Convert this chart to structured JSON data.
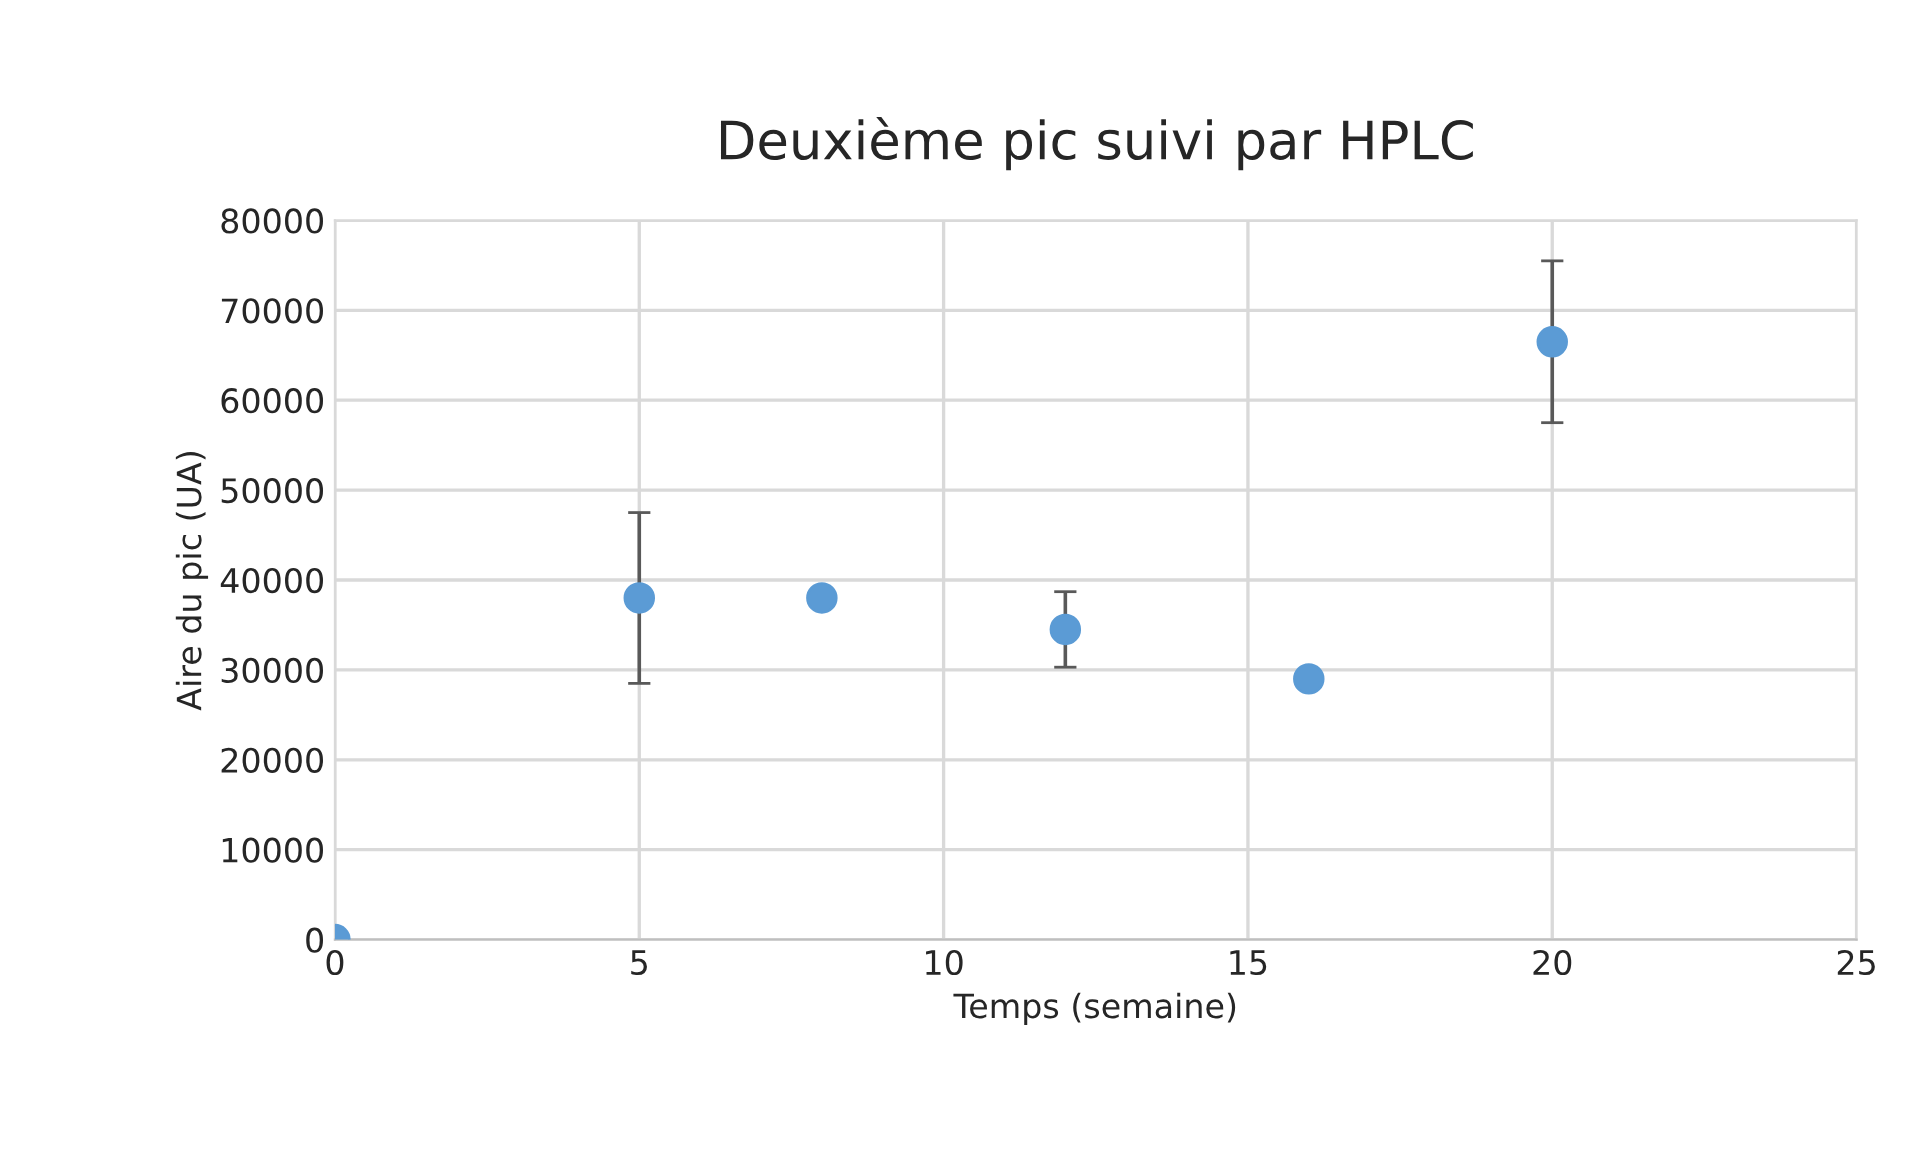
{
  "chart_data": {
    "type": "scatter",
    "title": "Deuxième pic suivi par HPLC",
    "xlabel": "Temps (semaine)",
    "ylabel": "Aire du pic (UA)",
    "x": [
      0,
      5,
      8,
      12,
      16,
      20
    ],
    "series": [
      {
        "color": "#5b9bd5",
        "values": [
          0,
          38000,
          38000,
          34500,
          29000,
          66500
        ],
        "errors": [
          null,
          9500,
          null,
          4200,
          null,
          9000
        ]
      }
    ],
    "xlim": [
      0,
      25
    ],
    "xticks": [
      0,
      5,
      10,
      15,
      20,
      25
    ],
    "ylim": [
      0,
      80000
    ],
    "yticks": [
      0,
      10000,
      20000,
      30000,
      40000,
      50000,
      60000,
      70000,
      80000
    ],
    "grid": true,
    "marker": "circle"
  }
}
